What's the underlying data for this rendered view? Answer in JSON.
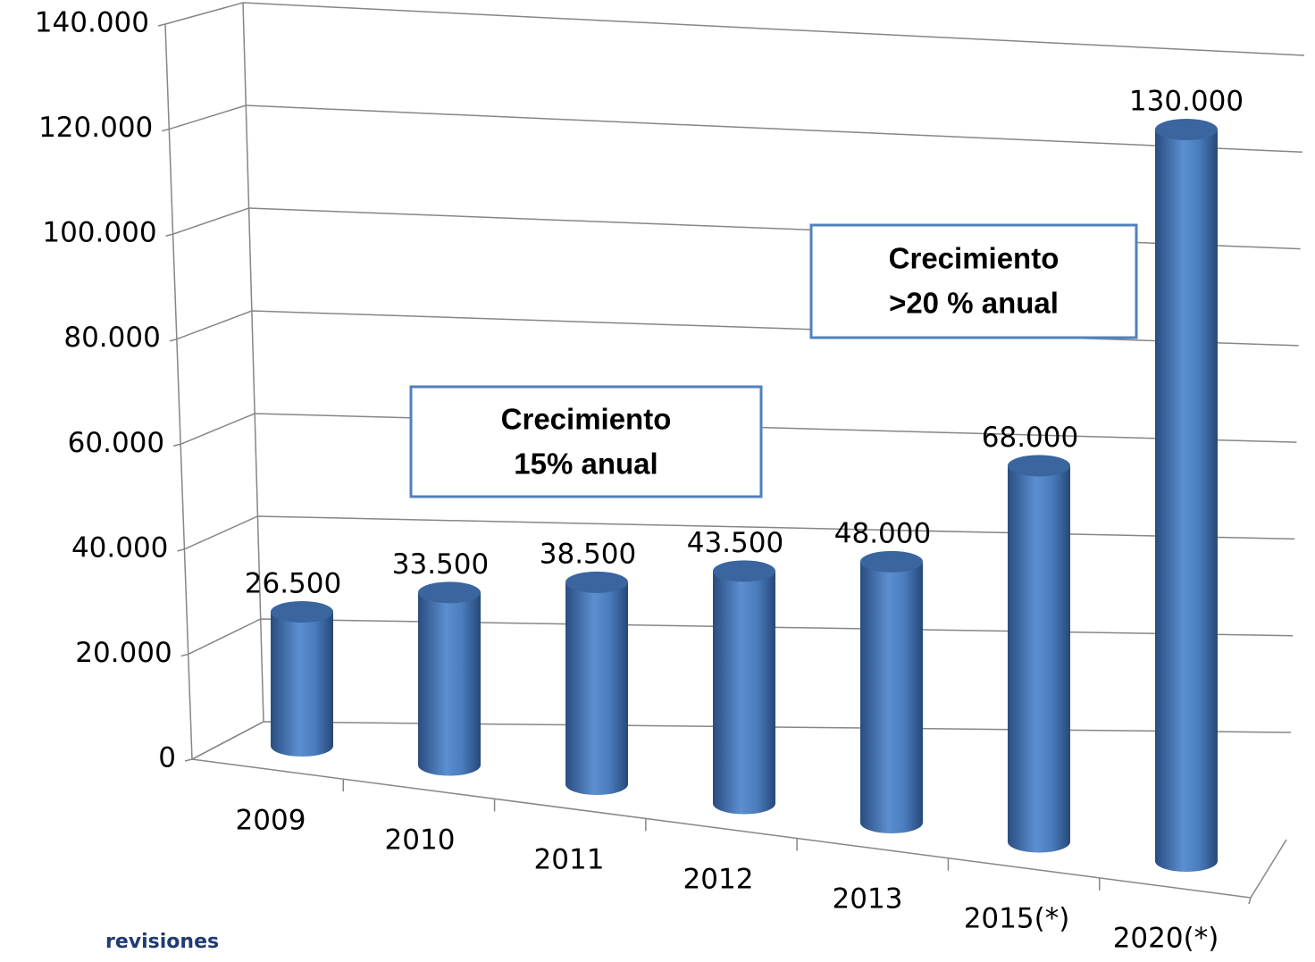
{
  "chart_data": {
    "type": "bar3d",
    "categories": [
      "2009",
      "2010",
      "2011",
      "2012",
      "2013",
      "2015(*)",
      "2020(*)"
    ],
    "values": [
      26500,
      33500,
      38500,
      43500,
      48000,
      68000,
      130000
    ],
    "value_labels": [
      "26.500",
      "33.500",
      "38.500",
      "43.500",
      "48.000",
      "68.000",
      "130.000"
    ],
    "color": "#4f81bd",
    "ylim": [
      0,
      140000
    ],
    "yticks": [
      0,
      {
        "value": 20000,
        "label": "20.000"
      },
      {
        "value": 40000,
        "label": "40.000"
      },
      {
        "value": 60000,
        "label": "60.000"
      },
      {
        "value": 80000,
        "label": "80.000"
      },
      {
        "value": 100000,
        "label": "100.000"
      },
      {
        "value": 120000,
        "label": "120.000"
      },
      {
        "value": 140000,
        "label": "140.000"
      }
    ],
    "grid": true,
    "annotations": [
      [
        "Crecimiento",
        "15% anual"
      ],
      [
        "Crecimiento",
        ">20 % anual"
      ]
    ],
    "footnote": "revisiones"
  }
}
